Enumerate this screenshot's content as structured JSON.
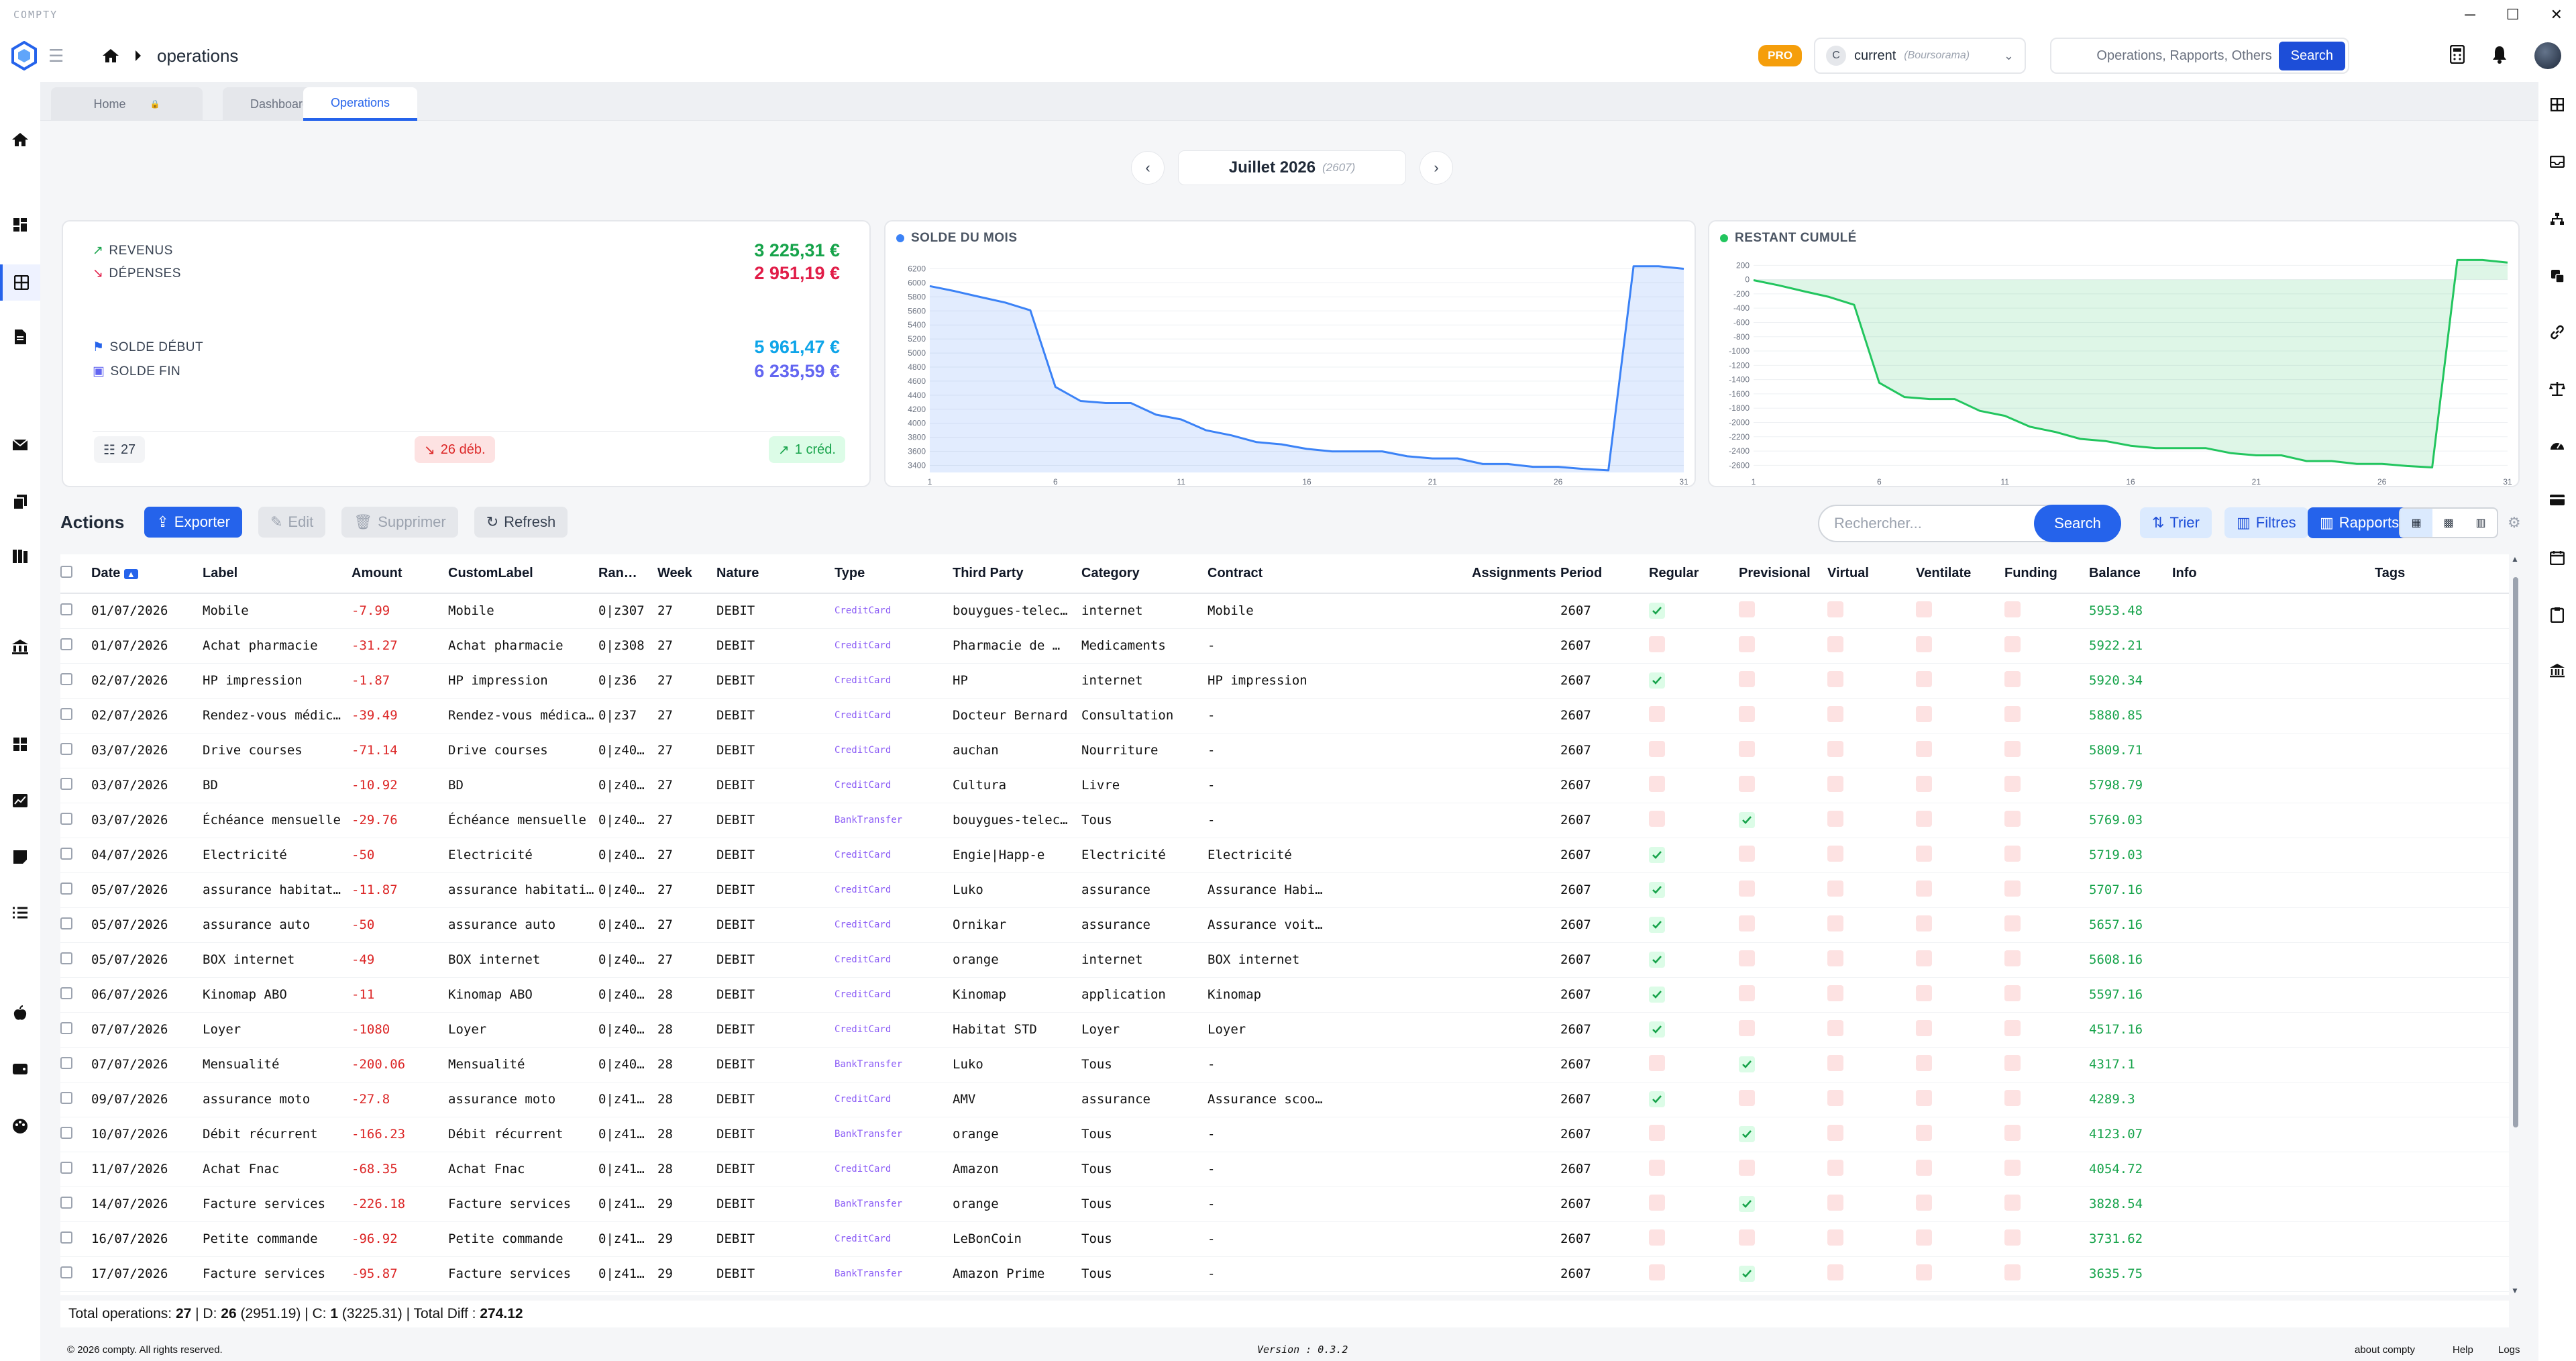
{
  "app": {
    "name": "COMPTY"
  },
  "header": {
    "breadcrumb": "operations",
    "badge": "PRO",
    "account": {
      "initial": "C",
      "name": "current",
      "bank": "(Boursorama)"
    },
    "search": {
      "placeholder": "Operations, Rapports, Others",
      "button": "Search"
    }
  },
  "tabs": [
    {
      "label": "Home",
      "active": false
    },
    {
      "label": "Dashboard",
      "active": false
    },
    {
      "label": "Operations",
      "active": true
    }
  ],
  "month_nav": {
    "label": "Juillet 2026",
    "code": "(2607)"
  },
  "summary": {
    "revenus_label": "REVENUS",
    "revenus": "3 225,31 €",
    "depenses_label": "DÉPENSES",
    "depenses": "2 951,19 €",
    "solde_debut_label": "SOLDE DÉBUT",
    "solde_debut": "5 961,47 €",
    "solde_fin_label": "SOLDE FIN",
    "solde_fin": "6 235,59 €",
    "count": "27",
    "debits": "26 déb.",
    "credits": "1 créd."
  },
  "colors": {
    "accent": "#2563eb",
    "positive": "#16a34a",
    "negative": "#dc2626",
    "debits_bg": "#fde2e2",
    "credits_bg": "#dcfce7"
  },
  "chart_data": [
    {
      "type": "area",
      "title": "SOLDE DU MOIS",
      "color": "#3b82f6",
      "x": [
        1,
        2,
        3,
        4,
        5,
        6,
        7,
        8,
        9,
        10,
        11,
        12,
        13,
        14,
        15,
        16,
        17,
        18,
        19,
        20,
        21,
        22,
        23,
        24,
        25,
        26,
        27,
        28,
        29,
        30,
        31
      ],
      "y": [
        5953.48,
        5880.85,
        5798.79,
        5719.03,
        5608.16,
        4517.16,
        4317.1,
        4289.3,
        4289.3,
        4123.07,
        4054.72,
        3900,
        3828.54,
        3731.62,
        3700,
        3635.75,
        3600,
        3600,
        3600,
        3530,
        3500,
        3500,
        3420,
        3420,
        3380,
        3380,
        3350,
        3330,
        6235.59,
        6235.59,
        6200
      ],
      "yticks": [
        3400,
        3600,
        3800,
        4000,
        4200,
        4400,
        4600,
        4800,
        5000,
        5200,
        5400,
        5600,
        5800,
        6000,
        6200
      ],
      "xticks": [
        1,
        6,
        11,
        16,
        21,
        26,
        31
      ],
      "ylim": [
        3300,
        6300
      ]
    },
    {
      "type": "area",
      "title": "RESTANT CUMULÉ",
      "color": "#22c55e",
      "x": [
        1,
        2,
        3,
        4,
        5,
        6,
        7,
        8,
        9,
        10,
        11,
        12,
        13,
        14,
        15,
        16,
        17,
        18,
        19,
        20,
        21,
        22,
        23,
        24,
        25,
        26,
        27,
        28,
        29,
        30,
        31
      ],
      "y": [
        -8,
        -81,
        -163,
        -242,
        -353,
        -1444,
        -1644,
        -1672,
        -1672,
        -1838,
        -1907,
        -2060,
        -2133,
        -2230,
        -2260,
        -2326,
        -2360,
        -2360,
        -2360,
        -2430,
        -2460,
        -2460,
        -2540,
        -2540,
        -2580,
        -2580,
        -2610,
        -2630,
        274,
        274,
        238
      ],
      "yticks": [
        -2600,
        -2400,
        -2200,
        -2000,
        -1800,
        -1600,
        -1400,
        -1200,
        -1000,
        -800,
        -600,
        -400,
        -200,
        0,
        200
      ],
      "xticks": [
        1,
        6,
        11,
        16,
        21,
        26,
        31
      ],
      "ylim": [
        -2700,
        250
      ]
    }
  ],
  "actions": {
    "title": "Actions",
    "exporter": "Exporter",
    "edit": "Edit",
    "supprimer": "Supprimer",
    "refresh": "Refresh",
    "search_placeholder": "Rechercher...",
    "search_button": "Search",
    "trier": "Trier",
    "filtres": "Filtres",
    "rapports": "Rapports"
  },
  "table": {
    "headers": [
      "Date",
      "Label",
      "Amount",
      "CustomLabel",
      "Ran…",
      "Week",
      "Nature",
      "Type",
      "Third Party",
      "Category",
      "Contract",
      "Assignments",
      "Period",
      "Regular",
      "Previsional",
      "Virtual",
      "Ventilate",
      "Funding",
      "Balance",
      "Info",
      "Tags"
    ],
    "rows": [
      [
        "01/07/2026",
        "Mobile",
        "-7.99",
        "Mobile",
        "0|z307",
        "27",
        "DEBIT",
        "CreditCard",
        "bouygues-telec…",
        "internet",
        "Mobile",
        "",
        "2607",
        true,
        false,
        "5953.48"
      ],
      [
        "01/07/2026",
        "Achat pharmacie",
        "-31.27",
        "Achat pharmacie",
        "0|z308",
        "27",
        "DEBIT",
        "CreditCard",
        "Pharmacie de …",
        "Medicaments",
        "-",
        "",
        "2607",
        false,
        false,
        "5922.21"
      ],
      [
        "02/07/2026",
        "HP impression",
        "-1.87",
        "HP impression",
        "0|z36",
        "27",
        "DEBIT",
        "CreditCard",
        "HP",
        "internet",
        "HP impression",
        "",
        "2607",
        true,
        false,
        "5920.34"
      ],
      [
        "02/07/2026",
        "Rendez-vous médic…",
        "-39.49",
        "Rendez-vous médica…",
        "0|z37",
        "27",
        "DEBIT",
        "CreditCard",
        "Docteur Bernard",
        "Consultation",
        "-",
        "",
        "2607",
        false,
        false,
        "5880.85"
      ],
      [
        "03/07/2026",
        "Drive courses",
        "-71.14",
        "Drive courses",
        "0|z40…",
        "27",
        "DEBIT",
        "CreditCard",
        "auchan",
        "Nourriture",
        "-",
        "",
        "2607",
        false,
        false,
        "5809.71"
      ],
      [
        "03/07/2026",
        "BD",
        "-10.92",
        "BD",
        "0|z40…",
        "27",
        "DEBIT",
        "CreditCard",
        "Cultura",
        "Livre",
        "-",
        "",
        "2607",
        false,
        false,
        "5798.79"
      ],
      [
        "03/07/2026",
        "Échéance mensuelle",
        "-29.76",
        "Échéance mensuelle",
        "0|z40…",
        "27",
        "DEBIT",
        "BankTransfer",
        "bouygues-telec…",
        "Tous",
        "-",
        "",
        "2607",
        false,
        true,
        "5769.03"
      ],
      [
        "04/07/2026",
        "Electricité",
        "-50",
        "Electricité",
        "0|z40…",
        "27",
        "DEBIT",
        "CreditCard",
        "Engie|Happ-e",
        "Electricité",
        "Electricité",
        "",
        "2607",
        true,
        false,
        "5719.03"
      ],
      [
        "05/07/2026",
        "assurance habitat…",
        "-11.87",
        "assurance habitati…",
        "0|z40…",
        "27",
        "DEBIT",
        "CreditCard",
        "Luko",
        "assurance",
        "Assurance Habi…",
        "",
        "2607",
        true,
        false,
        "5707.16"
      ],
      [
        "05/07/2026",
        "assurance auto",
        "-50",
        "assurance auto",
        "0|z40…",
        "27",
        "DEBIT",
        "CreditCard",
        "Ornikar",
        "assurance",
        "Assurance voit…",
        "",
        "2607",
        true,
        false,
        "5657.16"
      ],
      [
        "05/07/2026",
        "BOX internet",
        "-49",
        "BOX internet",
        "0|z40…",
        "27",
        "DEBIT",
        "CreditCard",
        "orange",
        "internet",
        "BOX internet",
        "",
        "2607",
        true,
        false,
        "5608.16"
      ],
      [
        "06/07/2026",
        "Kinomap ABO",
        "-11",
        "Kinomap ABO",
        "0|z40…",
        "28",
        "DEBIT",
        "CreditCard",
        "Kinomap",
        "application",
        "Kinomap",
        "",
        "2607",
        true,
        false,
        "5597.16"
      ],
      [
        "07/07/2026",
        "Loyer",
        "-1080",
        "Loyer",
        "0|z40…",
        "28",
        "DEBIT",
        "CreditCard",
        "Habitat STD",
        "Loyer",
        "Loyer",
        "",
        "2607",
        true,
        false,
        "4517.16"
      ],
      [
        "07/07/2026",
        "Mensualité",
        "-200.06",
        "Mensualité",
        "0|z40…",
        "28",
        "DEBIT",
        "BankTransfer",
        "Luko",
        "Tous",
        "-",
        "",
        "2607",
        false,
        true,
        "4317.1"
      ],
      [
        "09/07/2026",
        "assurance moto",
        "-27.8",
        "assurance moto",
        "0|z41…",
        "28",
        "DEBIT",
        "CreditCard",
        "AMV",
        "assurance",
        "Assurance scoo…",
        "",
        "2607",
        true,
        false,
        "4289.3"
      ],
      [
        "10/07/2026",
        "Débit récurrent",
        "-166.23",
        "Débit récurrent",
        "0|z41…",
        "28",
        "DEBIT",
        "BankTransfer",
        "orange",
        "Tous",
        "-",
        "",
        "2607",
        false,
        true,
        "4123.07"
      ],
      [
        "11/07/2026",
        "Achat Fnac",
        "-68.35",
        "Achat Fnac",
        "0|z41…",
        "28",
        "DEBIT",
        "CreditCard",
        "Amazon",
        "Tous",
        "-",
        "",
        "2607",
        false,
        false,
        "4054.72"
      ],
      [
        "14/07/2026",
        "Facture services",
        "-226.18",
        "Facture services",
        "0|z41…",
        "29",
        "DEBIT",
        "BankTransfer",
        "orange",
        "Tous",
        "-",
        "",
        "2607",
        false,
        true,
        "3828.54"
      ],
      [
        "16/07/2026",
        "Petite commande",
        "-96.92",
        "Petite commande",
        "0|z41…",
        "29",
        "DEBIT",
        "CreditCard",
        "LeBonCoin",
        "Tous",
        "-",
        "",
        "2607",
        false,
        false,
        "3731.62"
      ],
      [
        "17/07/2026",
        "Facture services",
        "-95.87",
        "Facture services",
        "0|z41…",
        "29",
        "DEBIT",
        "BankTransfer",
        "Amazon Prime",
        "Tous",
        "-",
        "",
        "2607",
        false,
        true,
        "3635.75"
      ]
    ]
  },
  "totals": {
    "prefix": "Total operations: ",
    "count": "27",
    "d_label": " | D: ",
    "d_count": "26",
    "d_amount": " (2951.19) | C: ",
    "c_count": "1",
    "c_amount": " (3225.31) | Total Diff : ",
    "diff": "274.12"
  },
  "footer": {
    "copyright": "© 2026 compty. All rights reserved.",
    "version": "Version : 0.3.2",
    "links": [
      "about compty",
      "Help",
      "Logs"
    ]
  }
}
